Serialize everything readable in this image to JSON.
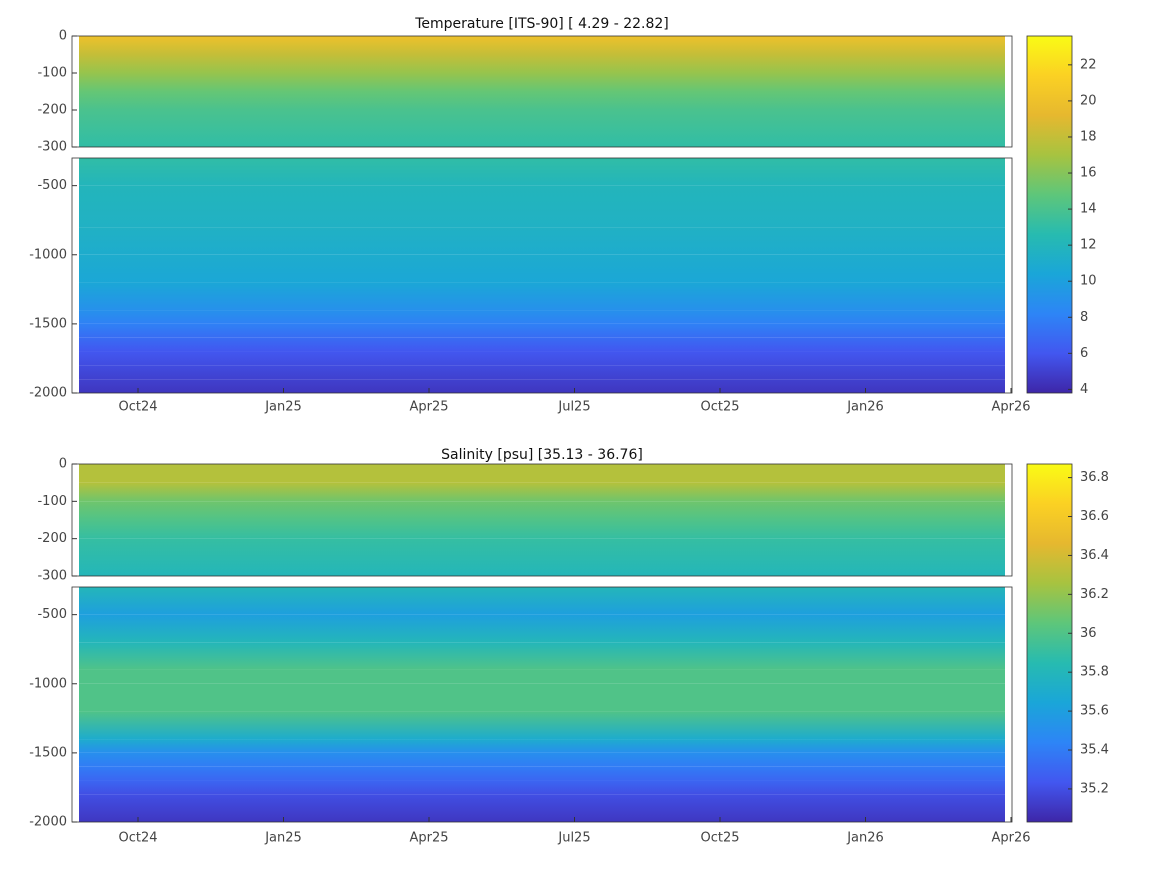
{
  "chart_data": [
    {
      "type": "contour",
      "title": "Temperature [ITS-90]   [ 4.29 - 22.82]",
      "xticks": [
        "Oct24",
        "Jan25",
        "Apr25",
        "Jul25",
        "Oct25",
        "Jan26",
        "Apr26"
      ],
      "panels": [
        {
          "ylim": [
            -300,
            0
          ],
          "yticks": [
            0,
            -100,
            -200,
            -300
          ]
        },
        {
          "ylim": [
            -2000,
            -300
          ],
          "yticks": [
            -500,
            -1000,
            -1500,
            -2000
          ]
        }
      ],
      "profile": {
        "depth": [
          0,
          -50,
          -100,
          -150,
          -200,
          -300,
          -500,
          -800,
          -1000,
          -1200,
          -1400,
          -1500,
          -1600,
          -1700,
          -1800,
          -1900,
          -2000
        ],
        "values": [
          20,
          18,
          16.5,
          15,
          14,
          13,
          12,
          11.5,
          11,
          10.5,
          9,
          8,
          7,
          6,
          5.5,
          5,
          4.5
        ]
      },
      "colorbar": {
        "clim": [
          3.8,
          23.6
        ],
        "ticks": [
          4,
          6,
          8,
          10,
          12,
          14,
          16,
          18,
          20,
          22
        ]
      },
      "colormap": [
        "#3e26a8",
        "#4257f0",
        "#2d85f6",
        "#1aa6d8",
        "#27bbb0",
        "#5ec67a",
        "#a7c340",
        "#e6b82f",
        "#fbd123",
        "#f9fb15"
      ]
    },
    {
      "type": "contour",
      "title": "Salinity [psu]   [35.13 - 36.76]",
      "xticks": [
        "Oct24",
        "Jan25",
        "Apr25",
        "Jul25",
        "Oct25",
        "Jan26",
        "Apr26"
      ],
      "panels": [
        {
          "ylim": [
            -300,
            0
          ],
          "yticks": [
            0,
            -100,
            -200,
            -300
          ]
        },
        {
          "ylim": [
            -2000,
            -300
          ],
          "yticks": [
            -500,
            -1000,
            -1500,
            -2000
          ]
        }
      ],
      "profile": {
        "depth": [
          0,
          -50,
          -100,
          -150,
          -200,
          -300,
          -500,
          -700,
          -900,
          -1000,
          -1200,
          -1400,
          -1500,
          -1600,
          -1700,
          -1800,
          -2000
        ],
        "values": [
          36.3,
          36.3,
          36.1,
          36.0,
          35.9,
          35.8,
          35.6,
          35.8,
          36.0,
          36.0,
          36.0,
          35.7,
          35.5,
          35.4,
          35.3,
          35.2,
          35.1
        ]
      },
      "colorbar": {
        "clim": [
          35.03,
          36.87
        ],
        "ticks": [
          35.2,
          35.4,
          35.6,
          35.8,
          36,
          36.2,
          36.4,
          36.6,
          36.8
        ]
      },
      "colormap": [
        "#3e26a8",
        "#4257f0",
        "#2d85f6",
        "#1aa6d8",
        "#27bbb0",
        "#5ec67a",
        "#a7c340",
        "#e6b82f",
        "#fbd123",
        "#f9fb15"
      ]
    }
  ]
}
